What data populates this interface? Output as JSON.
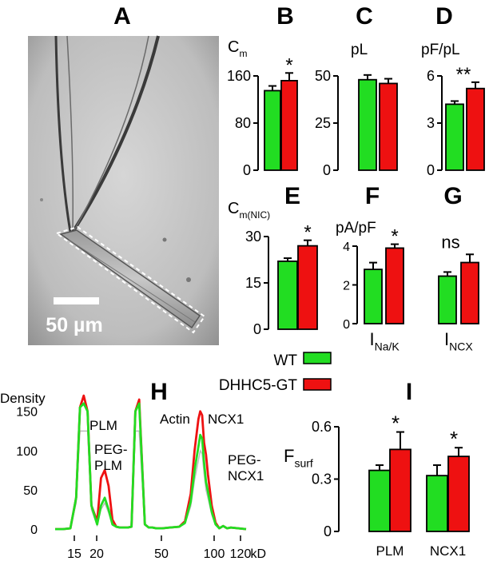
{
  "panel_letters": {
    "A": "A",
    "B": "B",
    "C": "C",
    "D": "D",
    "E": "E",
    "F": "F",
    "G": "G",
    "H": "H",
    "I": "I"
  },
  "micrograph": {
    "scale_bar_label": "50 µm"
  },
  "legend": [
    {
      "name": "WT",
      "color": "#22dd22"
    },
    {
      "name": "DHHC5-GT",
      "color": "#ee1111"
    }
  ],
  "colors": {
    "wt": "#22dd22",
    "gt": "#ee1111",
    "grey_trace": "#bbbbbb"
  },
  "chart_data": [
    {
      "id": "B",
      "type": "bar",
      "ylabel": "C",
      "ylabel_sub": "m",
      "ylim": [
        0,
        160
      ],
      "yticks": [
        "0",
        "80",
        "160"
      ],
      "series": [
        {
          "name": "WT",
          "values": [
            135
          ],
          "err": [
            8
          ]
        },
        {
          "name": "DHHC5-GT",
          "values": [
            152
          ],
          "err": [
            13
          ]
        }
      ],
      "significance": "*"
    },
    {
      "id": "C",
      "type": "bar",
      "ylabel": "pL",
      "ylim": [
        0,
        50
      ],
      "yticks": [
        "0",
        "25",
        "50"
      ],
      "series": [
        {
          "name": "WT",
          "values": [
            48
          ],
          "err": [
            2.5
          ]
        },
        {
          "name": "DHHC5-GT",
          "values": [
            46
          ],
          "err": [
            2.5
          ]
        }
      ],
      "significance": ""
    },
    {
      "id": "D",
      "type": "bar",
      "ylabel": "pF/pL",
      "ylim": [
        0,
        6
      ],
      "yticks": [
        "0",
        "3",
        "6"
      ],
      "series": [
        {
          "name": "WT",
          "values": [
            4.2
          ],
          "err": [
            0.2
          ]
        },
        {
          "name": "DHHC5-GT",
          "values": [
            5.2
          ],
          "err": [
            0.4
          ]
        }
      ],
      "significance": "**"
    },
    {
      "id": "E",
      "type": "bar",
      "ylabel": "C",
      "ylabel_sub": "m(NIC)",
      "ylim": [
        0,
        30
      ],
      "yticks": [
        "0",
        "15",
        "30"
      ],
      "series": [
        {
          "name": "WT",
          "values": [
            22
          ],
          "err": [
            1
          ]
        },
        {
          "name": "DHHC5-GT",
          "values": [
            27
          ],
          "err": [
            1.8
          ]
        }
      ],
      "significance": "*"
    },
    {
      "id": "F",
      "type": "bar",
      "ylabel": "pA/pF",
      "ylim": [
        0,
        4
      ],
      "yticks": [
        "0",
        "2",
        "4"
      ],
      "xlabel": "I",
      "xlabel_sub": "Na/K",
      "series": [
        {
          "name": "WT",
          "values": [
            2.8
          ],
          "err": [
            0.35
          ]
        },
        {
          "name": "DHHC5-GT",
          "values": [
            3.9
          ],
          "err": [
            0.2
          ]
        }
      ],
      "significance": "*"
    },
    {
      "id": "G",
      "type": "bar",
      "ylabel": "",
      "ylim": [
        0,
        5
      ],
      "yticks": [],
      "xlabel": "I",
      "xlabel_sub": "NCX",
      "series": [
        {
          "name": "WT",
          "values": [
            3.5
          ],
          "err": [
            0.3
          ]
        },
        {
          "name": "DHHC5-GT",
          "values": [
            4.5
          ],
          "err": [
            0.6
          ]
        }
      ],
      "significance": "ns"
    },
    {
      "id": "H",
      "type": "line",
      "ylabel": "Density",
      "xlabel": "kD",
      "ylim": [
        -5,
        165
      ],
      "yticks": [
        "0",
        "50",
        "100",
        "150"
      ],
      "xticks": [
        "15",
        "20",
        "50",
        "100",
        "120"
      ],
      "annotations": [
        "PLM",
        "PEG-\nPLM",
        "Actin",
        "NCX1",
        "PEG-\nNCX1"
      ],
      "series": [
        {
          "name": "WT",
          "x": [
            0,
            4,
            8,
            11,
            13,
            15,
            17,
            19,
            22,
            24,
            26,
            28,
            30,
            32,
            34,
            36,
            38,
            40,
            42,
            44,
            47,
            49,
            51,
            53,
            56,
            60,
            65,
            68,
            71,
            73,
            75,
            76,
            77,
            78,
            79,
            80,
            82,
            84,
            86,
            88,
            90,
            92,
            100
          ],
          "y": [
            0,
            0,
            1,
            40,
            155,
            160,
            150,
            30,
            6,
            30,
            40,
            25,
            6,
            3,
            2,
            2,
            2,
            3,
            150,
            160,
            6,
            2,
            2,
            1,
            1,
            2,
            3,
            8,
            35,
            75,
            105,
            120,
            115,
            85,
            60,
            48,
            22,
            6,
            1,
            4,
            1,
            2,
            0
          ]
        },
        {
          "name": "DHHC5-GT",
          "x": [
            0,
            4,
            8,
            11,
            13,
            15,
            17,
            19,
            22,
            24,
            26,
            28,
            30,
            32,
            34,
            36,
            38,
            40,
            42,
            44,
            47,
            49,
            51,
            53,
            56,
            60,
            65,
            68,
            71,
            73,
            75,
            76,
            77,
            78,
            79,
            80,
            82,
            84,
            86,
            88,
            90,
            92,
            100
          ],
          "y": [
            0,
            0,
            1,
            40,
            155,
            170,
            150,
            30,
            10,
            65,
            75,
            55,
            12,
            3,
            2,
            2,
            2,
            3,
            150,
            165,
            6,
            2,
            2,
            1,
            1,
            2,
            3,
            10,
            45,
            100,
            140,
            150,
            145,
            110,
            95,
            70,
            30,
            8,
            1,
            4,
            1,
            2,
            0
          ]
        }
      ]
    },
    {
      "id": "I",
      "type": "bar",
      "ylabel": "F",
      "ylabel_sub": "surf",
      "ylim": [
        0,
        0.6
      ],
      "yticks": [
        "0",
        "0.3",
        "0.6"
      ],
      "categories": [
        "PLM",
        "NCX1"
      ],
      "series": [
        {
          "name": "WT",
          "values": [
            0.35,
            0.32
          ],
          "err": [
            0.03,
            0.06
          ]
        },
        {
          "name": "DHHC5-GT",
          "values": [
            0.47,
            0.43
          ],
          "err": [
            0.1,
            0.05
          ]
        }
      ],
      "significance": [
        "*",
        "*"
      ]
    }
  ]
}
